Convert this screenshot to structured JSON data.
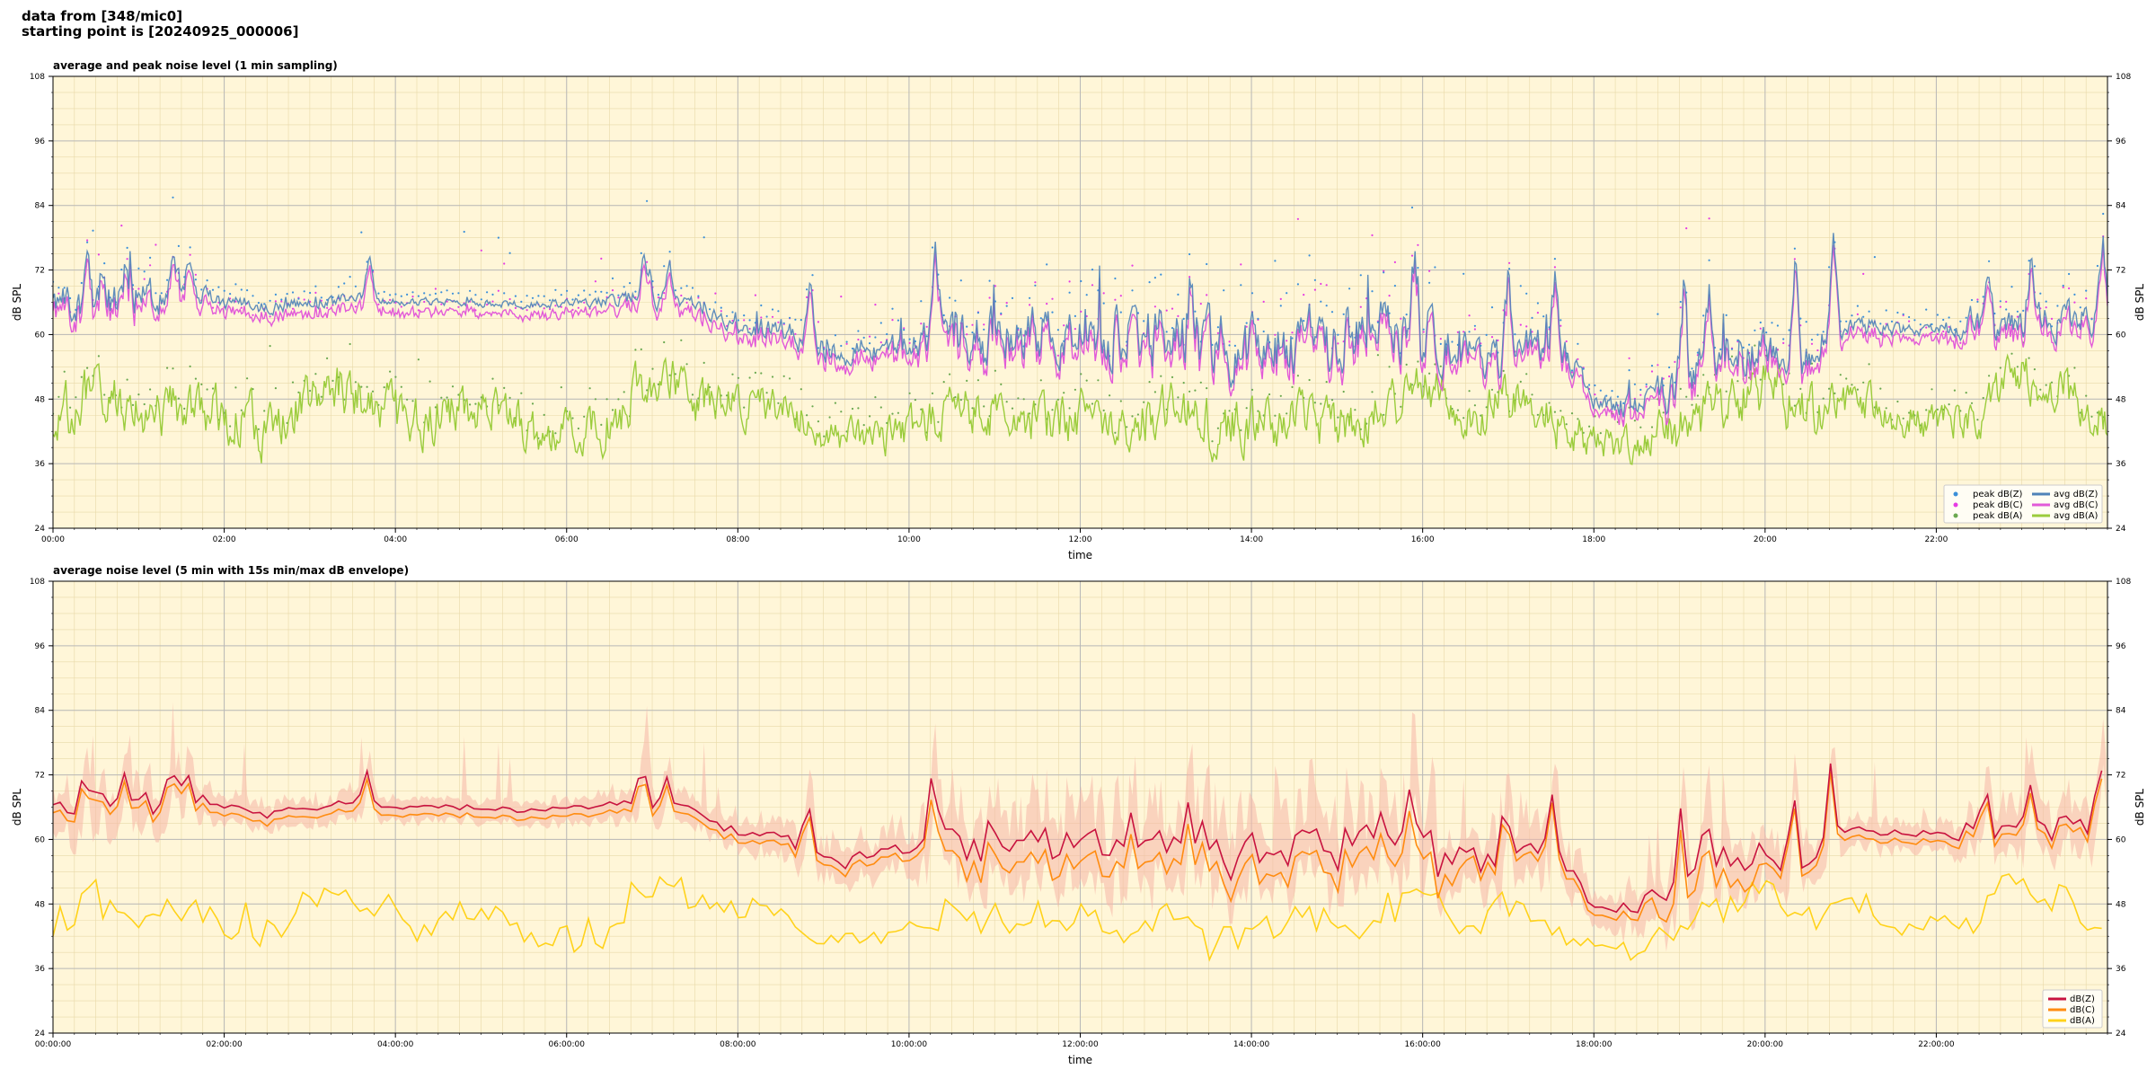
{
  "header": {
    "line1": "data from [348/mic0]",
    "line2": "starting point is [20240925_000006]"
  },
  "colors": {
    "background": "#fff6d8",
    "peak_z": "#3b8fd9",
    "peak_c": "#e63be3",
    "peak_a": "#6aa84f",
    "avg_z": "#4f83b8",
    "avg_c": "#e25ad8",
    "avg_a": "#9bcc3c",
    "dbz": "#c8133f",
    "dbc": "#ff8c10",
    "dba": "#ffd21a",
    "envelope": "#f5b7a8"
  },
  "chart_data": [
    {
      "type": "line",
      "title": "average and peak noise level (1 min sampling)",
      "xlabel": "time",
      "ylabel": "dB SPL",
      "x_unit": "hours",
      "xlim": [
        0,
        24
      ],
      "ylim": [
        24,
        108
      ],
      "x_ticks": [
        0,
        2,
        4,
        6,
        8,
        10,
        12,
        14,
        16,
        18,
        20,
        22
      ],
      "x_tick_labels": [
        "00:00",
        "02:00",
        "04:00",
        "06:00",
        "08:00",
        "10:00",
        "12:00",
        "14:00",
        "16:00",
        "18:00",
        "20:00",
        "22:00"
      ],
      "y_ticks": [
        24,
        36,
        48,
        60,
        72,
        84,
        96,
        108
      ],
      "y_tick_labels": [
        "24",
        "36",
        "48",
        "60",
        "72",
        "84",
        "96",
        "108"
      ],
      "grid": true,
      "legend_position": "lower-right",
      "legend": [
        {
          "label": "peak dB(Z)",
          "kind": "dot",
          "color": "#3b8fd9"
        },
        {
          "label": "avg dB(Z)",
          "kind": "line",
          "color": "#4f83b8"
        },
        {
          "label": "peak dB(C)",
          "kind": "dot",
          "color": "#e63be3"
        },
        {
          "label": "avg dB(C)",
          "kind": "line",
          "color": "#e25ad8"
        },
        {
          "label": "peak dB(A)",
          "kind": "dot",
          "color": "#6aa84f"
        },
        {
          "label": "avg dB(A)",
          "kind": "line",
          "color": "#9bcc3c"
        }
      ],
      "profiles": {
        "x": [
          0,
          0.5,
          1,
          1.5,
          2,
          2.5,
          3,
          3.5,
          4,
          4.5,
          5,
          5.5,
          6,
          6.5,
          7,
          7.5,
          8,
          8.5,
          9,
          9.5,
          10,
          10.5,
          11,
          11.5,
          12,
          12.5,
          13,
          13.5,
          14,
          14.5,
          15,
          15.5,
          16,
          16.5,
          17,
          17.5,
          18,
          18.5,
          19,
          19.5,
          20,
          20.5,
          21,
          21.5,
          22,
          22.5,
          23,
          23.5,
          24
        ],
        "dbz": [
          66,
          65,
          67,
          69,
          66,
          65,
          66,
          67,
          66,
          66,
          66,
          65.5,
          66,
          66.5,
          67,
          66,
          61,
          61,
          57,
          57,
          58,
          61,
          62,
          60,
          59,
          60,
          59,
          58,
          57,
          59,
          60,
          61,
          60,
          56,
          55,
          60,
          48,
          47,
          50,
          56,
          58,
          55,
          62,
          61,
          61,
          61.5,
          62,
          63,
          63
        ],
        "dba": [
          43,
          50,
          45,
          47,
          45,
          42,
          49,
          50,
          44,
          45,
          48,
          43,
          42,
          44,
          52,
          48,
          47,
          47,
          42,
          40,
          42,
          46,
          46,
          43,
          45,
          42,
          47,
          43,
          44,
          43,
          44,
          45,
          49,
          46,
          48,
          44,
          40,
          40,
          42,
          47,
          50,
          45,
          48,
          45,
          44,
          44,
          53,
          50,
          45
        ],
        "z_var": [
          2.5,
          3,
          3,
          2,
          1,
          1,
          1,
          0.8,
          0.6,
          0.6,
          0.6,
          0.6,
          0.7,
          1,
          1.6,
          1,
          1,
          2,
          2,
          2,
          2,
          4,
          4.5,
          4.5,
          4.5,
          4.5,
          4.5,
          4.5,
          4.5,
          4.5,
          4.5,
          4.5,
          4.5,
          3,
          3,
          3,
          1.5,
          2,
          4,
          4,
          3,
          2,
          1,
          1,
          1,
          2,
          2.5,
          2.5,
          2.5
        ],
        "a_var": [
          4,
          4,
          4,
          4,
          4,
          4,
          4,
          4,
          4,
          4,
          4,
          4,
          3,
          4,
          4,
          4,
          3,
          3,
          3,
          2.5,
          3,
          4,
          4,
          4,
          4,
          4,
          4,
          4,
          4,
          4,
          4,
          4,
          4,
          4,
          4,
          4,
          2.5,
          3,
          4,
          4,
          4,
          4,
          3,
          3,
          3,
          3,
          4,
          4,
          4
        ],
        "peak_offset": [
          3,
          3,
          4,
          4,
          2,
          2,
          2,
          2,
          1,
          1,
          1,
          1,
          1,
          2,
          3,
          2,
          2,
          3,
          4,
          4,
          4,
          8,
          10,
          10,
          10,
          10,
          10,
          10,
          10,
          10,
          10,
          10,
          10,
          6,
          6,
          6,
          3,
          3,
          6,
          6,
          6,
          4,
          2,
          2,
          2,
          3,
          5,
          5,
          5
        ]
      },
      "spikes": [
        {
          "x": 0.4,
          "y": 75
        },
        {
          "x": 0.6,
          "y": 74
        },
        {
          "x": 0.85,
          "y": 74
        },
        {
          "x": 1.4,
          "y": 75
        },
        {
          "x": 1.6,
          "y": 74
        },
        {
          "x": 3.7,
          "y": 75
        },
        {
          "x": 6.9,
          "y": 74
        },
        {
          "x": 7.2,
          "y": 75
        },
        {
          "x": 8.85,
          "y": 73
        },
        {
          "x": 10.3,
          "y": 78
        },
        {
          "x": 13.3,
          "y": 71
        },
        {
          "x": 15.9,
          "y": 75
        },
        {
          "x": 17.0,
          "y": 70
        },
        {
          "x": 17.55,
          "y": 70
        },
        {
          "x": 19.05,
          "y": 71
        },
        {
          "x": 19.35,
          "y": 70
        },
        {
          "x": 20.35,
          "y": 76
        },
        {
          "x": 20.8,
          "y": 78
        },
        {
          "x": 22.6,
          "y": 72
        },
        {
          "x": 23.1,
          "y": 74
        },
        {
          "x": 23.95,
          "y": 78
        }
      ]
    },
    {
      "type": "line",
      "title": "average noise level (5 min with 15s min/max dB envelope)",
      "xlabel": "time",
      "ylabel": "dB SPL",
      "x_unit": "hours",
      "xlim": [
        0,
        24
      ],
      "ylim": [
        24,
        108
      ],
      "x_ticks": [
        0,
        2,
        4,
        6,
        8,
        10,
        12,
        14,
        16,
        18,
        20,
        22
      ],
      "x_tick_labels": [
        "00:00:00",
        "02:00:00",
        "04:00:00",
        "06:00:00",
        "08:00:00",
        "10:00:00",
        "12:00:00",
        "14:00:00",
        "16:00:00",
        "18:00:00",
        "20:00:00",
        "22:00:00"
      ],
      "y_ticks": [
        24,
        36,
        48,
        60,
        72,
        84,
        96,
        108
      ],
      "y_tick_labels": [
        "24",
        "36",
        "48",
        "60",
        "72",
        "84",
        "96",
        "108"
      ],
      "grid": true,
      "legend_position": "lower-right",
      "legend": [
        {
          "label": "dB(Z)",
          "kind": "line",
          "color": "#c8133f"
        },
        {
          "label": "dB(C)",
          "kind": "line",
          "color": "#ff8c10"
        },
        {
          "label": "dB(A)",
          "kind": "line",
          "color": "#ffd21a"
        }
      ]
    }
  ]
}
